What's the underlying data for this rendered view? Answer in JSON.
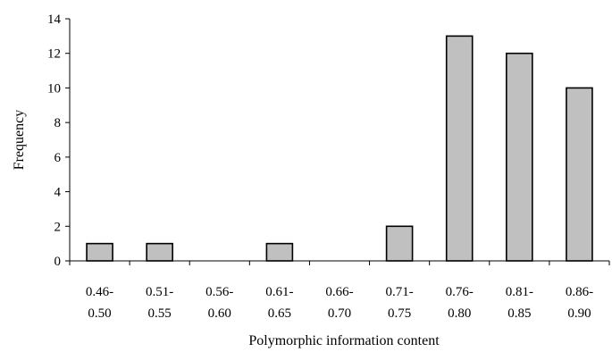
{
  "chart_data": {
    "type": "bar",
    "categories": [
      [
        "0.46-",
        "0.50"
      ],
      [
        "0.51-",
        "0.55"
      ],
      [
        "0.56-",
        "0.60"
      ],
      [
        "0.61-",
        "0.65"
      ],
      [
        "0.66-",
        "0.70"
      ],
      [
        "0.71-",
        "0.75"
      ],
      [
        "0.76-",
        "0.80"
      ],
      [
        "0.81-",
        "0.85"
      ],
      [
        "0.86-",
        "0.90"
      ]
    ],
    "values": [
      1,
      1,
      0,
      1,
      0,
      2,
      13,
      12,
      10
    ],
    "xlabel": "Polymorphic information content",
    "ylabel": "Frequency",
    "ylim": [
      0,
      14
    ],
    "yticks": [
      0,
      2,
      4,
      6,
      8,
      10,
      12,
      14
    ],
    "bar_color": "#c0c0c0",
    "grid": false
  }
}
